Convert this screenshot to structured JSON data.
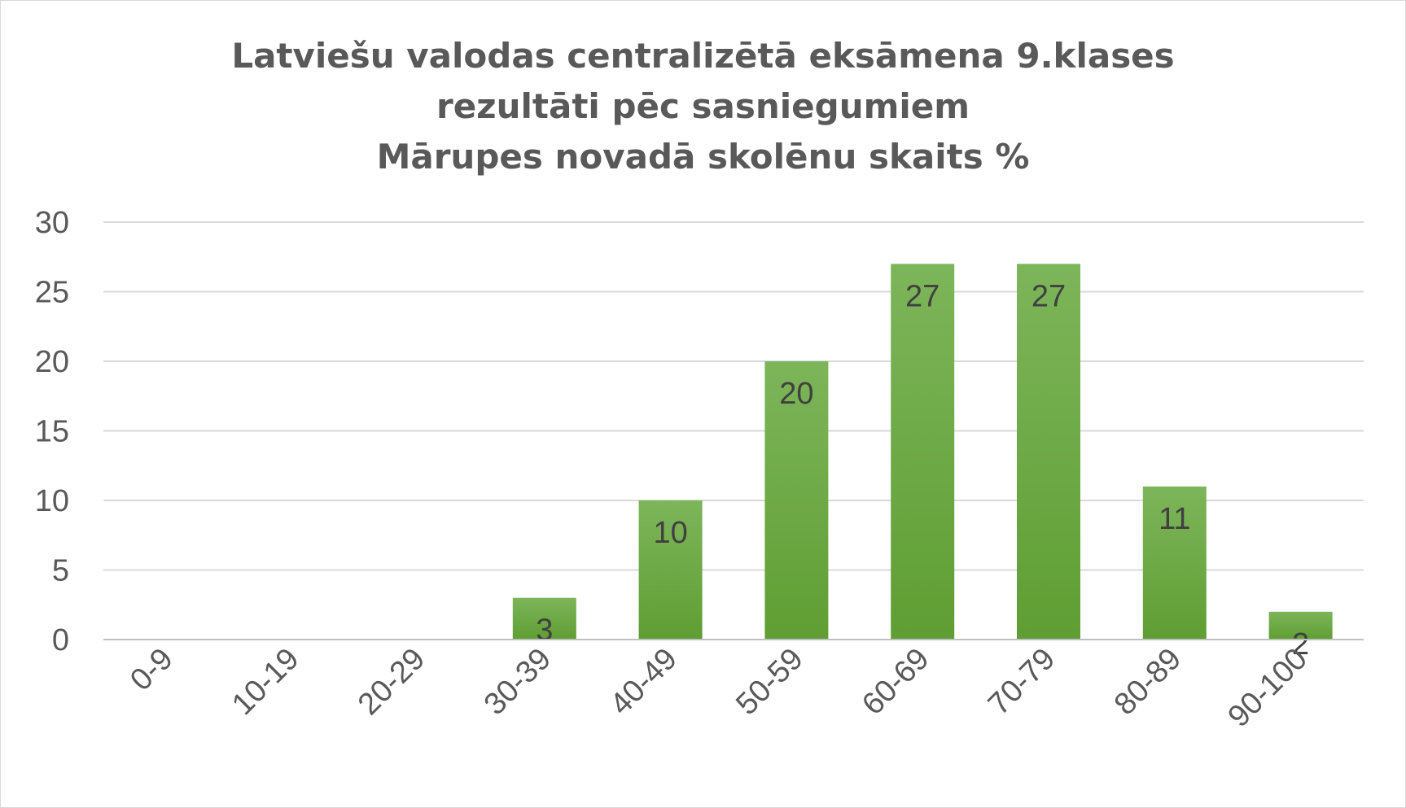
{
  "chart_data": {
    "type": "bar",
    "title": [
      "Latviešu valodas centralizētā eksāmena 9.klases",
      "rezultāti pēc sasniegumiem",
      "Mārupes novadā skolēnu skaits %"
    ],
    "categories": [
      "0-9",
      "10-19",
      "20-29",
      "30-39",
      "40-49",
      "50-59",
      "60-69",
      "70-79",
      "80-89",
      "90-100"
    ],
    "values": [
      0,
      0,
      0,
      3,
      10,
      20,
      27,
      27,
      11,
      2
    ],
    "data_labels": [
      "",
      "",
      "",
      "3",
      "10",
      "20",
      "27",
      "27",
      "11",
      "2"
    ],
    "y_ticks": [
      "0",
      "5",
      "10",
      "15",
      "20",
      "25",
      "30"
    ],
    "xlabel": "",
    "ylabel": "",
    "ylim": [
      0,
      30
    ],
    "grid": true,
    "legend": "none",
    "colors": {
      "bar_top": "#7db55a",
      "bar_bottom": "#5f9e33",
      "grid": "#d9d9d9",
      "axis": "#bfbfbf",
      "text": "#595959"
    }
  }
}
